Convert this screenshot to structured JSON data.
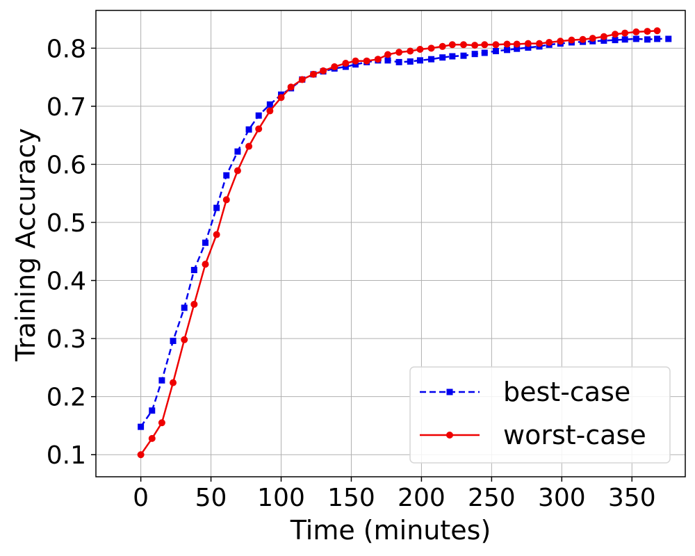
{
  "chart_data": {
    "type": "line",
    "xlabel": "Time (minutes)",
    "ylabel": "Training Accuracy",
    "xlim": [
      -32,
      388
    ],
    "ylim": [
      0.062,
      0.865
    ],
    "xticks": [
      0,
      50,
      100,
      150,
      200,
      250,
      300,
      350
    ],
    "yticks": [
      0.1,
      0.2,
      0.3,
      0.4,
      0.5,
      0.6,
      0.7,
      0.8
    ],
    "grid": true,
    "legend": "lower-right",
    "series": [
      {
        "name": "best-case",
        "color": "#0000ee",
        "line_style": "dashed",
        "marker": "square",
        "x": [
          0,
          8,
          15,
          23,
          31,
          38,
          46,
          54,
          61,
          69,
          77,
          84,
          92,
          100,
          107,
          115,
          123,
          130,
          138,
          146,
          153,
          161,
          169,
          176,
          184,
          192,
          199,
          207,
          215,
          222,
          230,
          238,
          245,
          253,
          261,
          268,
          276,
          284,
          291,
          299,
          307,
          315,
          322,
          330,
          338,
          345,
          353,
          361,
          368,
          376
        ],
        "y": [
          0.148,
          0.176,
          0.228,
          0.296,
          0.353,
          0.418,
          0.465,
          0.525,
          0.581,
          0.622,
          0.66,
          0.684,
          0.703,
          0.72,
          0.731,
          0.746,
          0.755,
          0.76,
          0.765,
          0.768,
          0.772,
          0.776,
          0.779,
          0.779,
          0.776,
          0.777,
          0.779,
          0.781,
          0.784,
          0.786,
          0.787,
          0.79,
          0.792,
          0.795,
          0.797,
          0.799,
          0.801,
          0.803,
          0.806,
          0.808,
          0.81,
          0.811,
          0.812,
          0.813,
          0.814,
          0.815,
          0.816,
          0.815,
          0.816,
          0.816
        ]
      },
      {
        "name": "worst-case",
        "color": "#ee0000",
        "line_style": "solid",
        "marker": "circle",
        "x": [
          0,
          8,
          15,
          23,
          31,
          38,
          46,
          54,
          61,
          69,
          77,
          84,
          92,
          100,
          107,
          115,
          123,
          130,
          138,
          146,
          153,
          161,
          169,
          176,
          184,
          192,
          199,
          207,
          215,
          222,
          230,
          238,
          245,
          253,
          261,
          268,
          276,
          284,
          291,
          299,
          307,
          315,
          322,
          330,
          338,
          345,
          353,
          361,
          368
        ],
        "y": [
          0.1,
          0.128,
          0.155,
          0.224,
          0.298,
          0.359,
          0.428,
          0.479,
          0.539,
          0.589,
          0.631,
          0.661,
          0.692,
          0.715,
          0.733,
          0.746,
          0.755,
          0.761,
          0.768,
          0.774,
          0.778,
          0.778,
          0.781,
          0.789,
          0.793,
          0.795,
          0.798,
          0.8,
          0.803,
          0.806,
          0.806,
          0.805,
          0.806,
          0.806,
          0.807,
          0.807,
          0.808,
          0.808,
          0.81,
          0.812,
          0.814,
          0.815,
          0.817,
          0.82,
          0.824,
          0.826,
          0.828,
          0.829,
          0.83
        ]
      }
    ]
  }
}
